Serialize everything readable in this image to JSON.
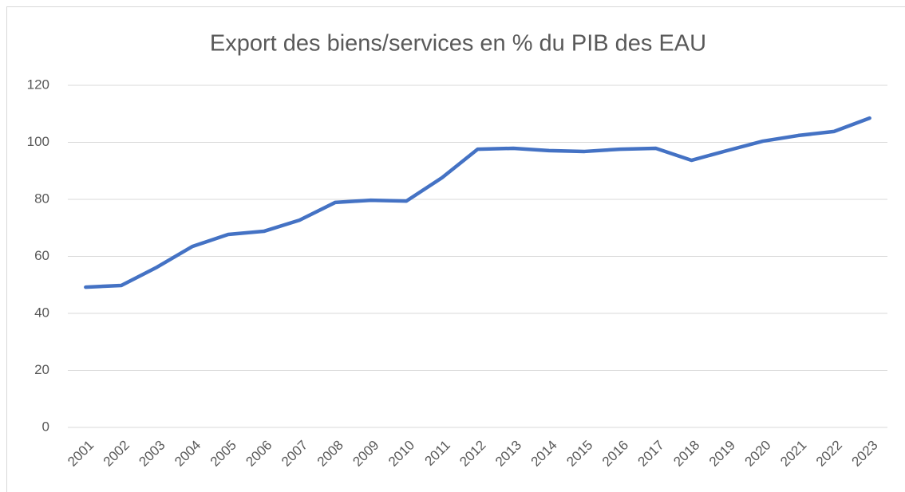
{
  "chart_data": {
    "type": "line",
    "title": "Export des biens/services en % du PIB des EAU",
    "categories": [
      "2001",
      "2002",
      "2003",
      "2004",
      "2005",
      "2006",
      "2007",
      "2008",
      "2009",
      "2010",
      "2011",
      "2012",
      "2013",
      "2014",
      "2015",
      "2016",
      "2017",
      "2018",
      "2019",
      "2020",
      "2021",
      "2022",
      "2023"
    ],
    "series": [
      {
        "name": "Export",
        "color": "#4472c4",
        "values": [
          49.2,
          49.8,
          56.2,
          63.5,
          67.7,
          68.8,
          72.7,
          78.9,
          79.7,
          79.4,
          87.6,
          97.6,
          97.9,
          97.1,
          96.8,
          97.6,
          97.9,
          93.7,
          97.1,
          100.4,
          102.4,
          103.8,
          108.5
        ]
      }
    ],
    "ylim": [
      0,
      120
    ],
    "yticks": [
      0,
      20,
      40,
      60,
      80,
      100,
      120
    ],
    "grid": true,
    "legend": false
  }
}
